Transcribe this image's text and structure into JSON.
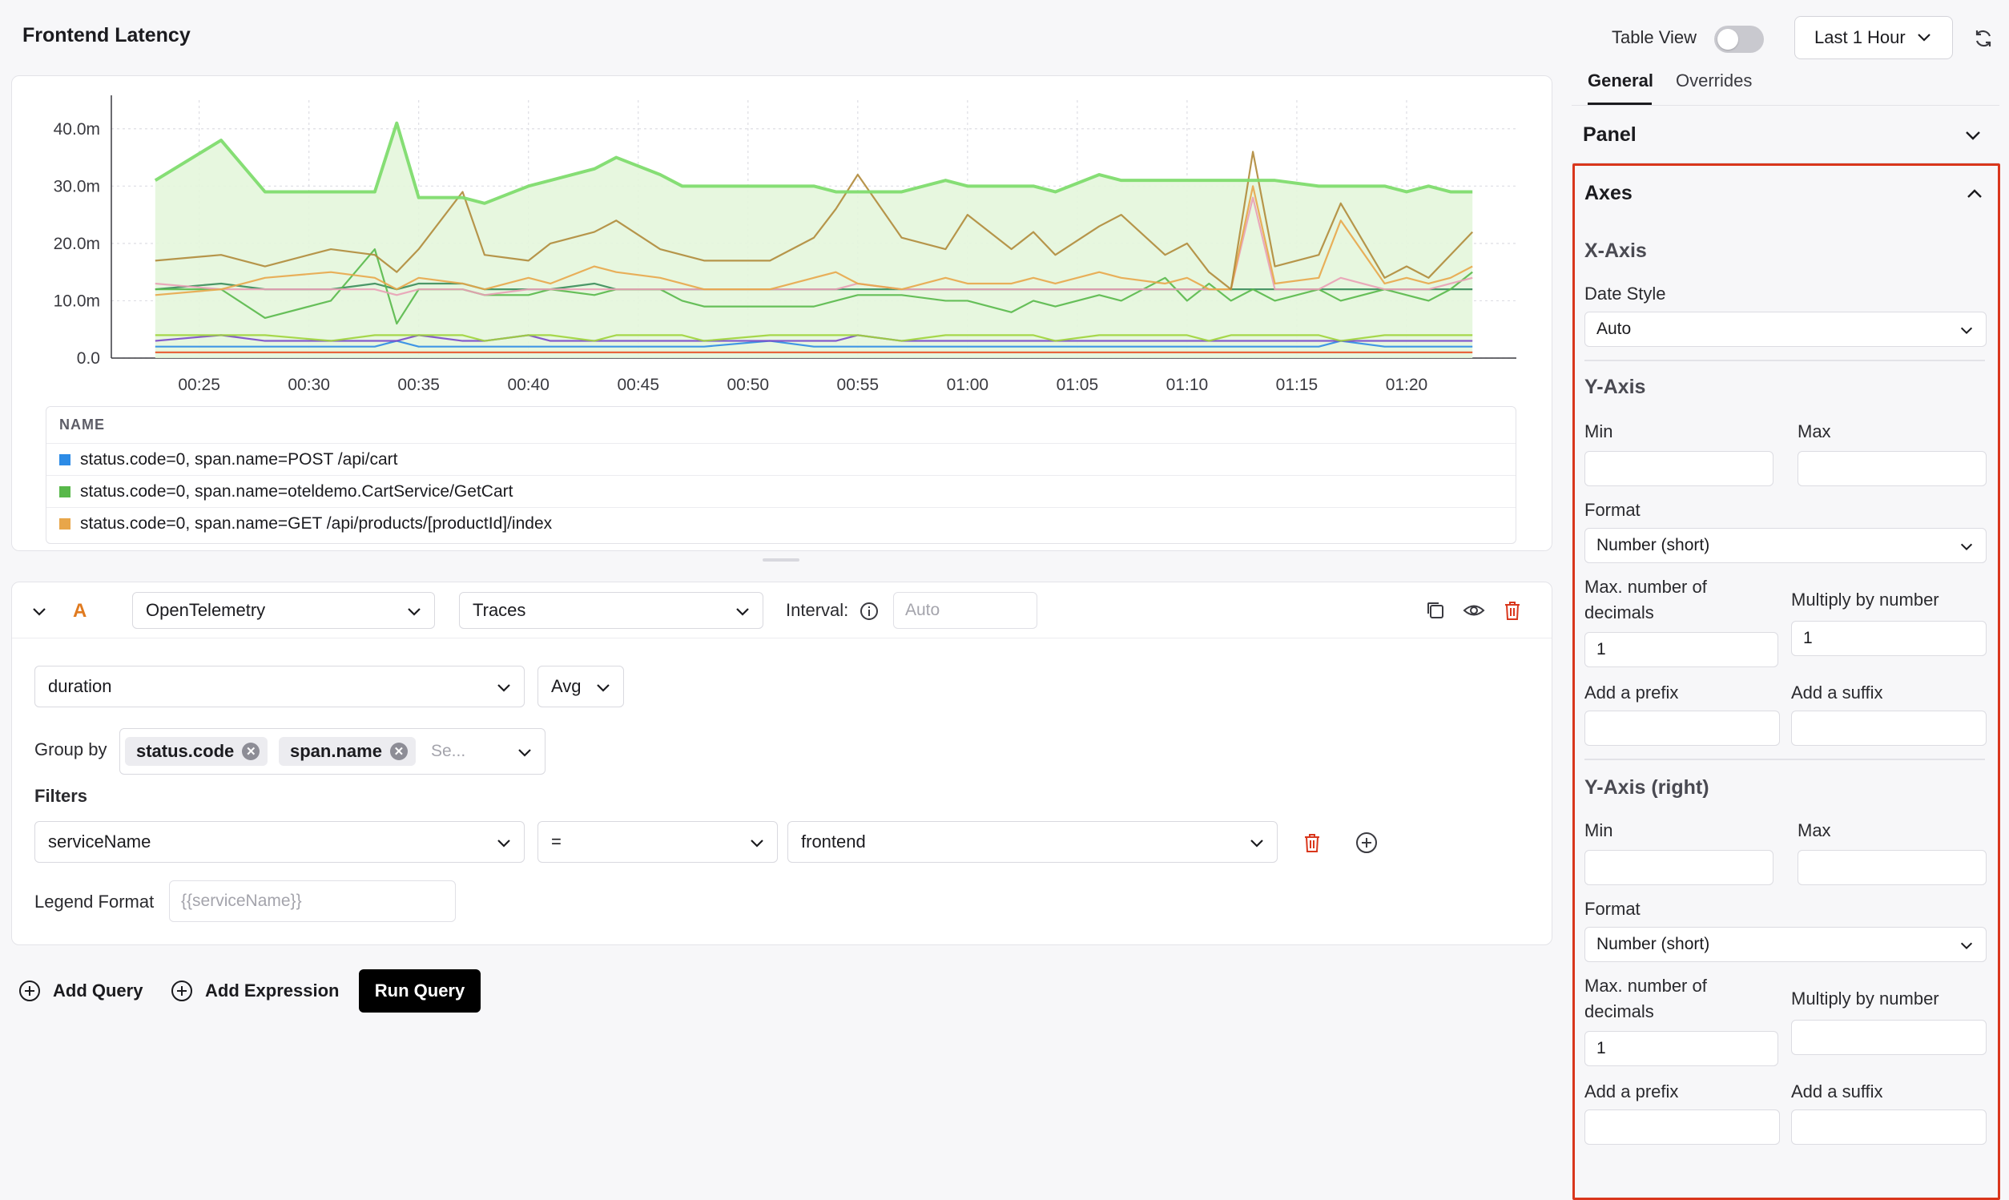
{
  "header": {
    "title": "Frontend Latency",
    "table_view_label": "Table View",
    "table_view_on": false,
    "time_range": "Last 1 Hour"
  },
  "chart_data": {
    "type": "line",
    "title": "",
    "xlabel": "",
    "ylabel": "",
    "x_ticks": [
      "00:25",
      "00:30",
      "00:35",
      "00:40",
      "00:45",
      "00:50",
      "00:55",
      "01:00",
      "01:05",
      "01:10",
      "01:15",
      "01:20"
    ],
    "y_ticks": [
      "0.0",
      "10.0m",
      "20.0m",
      "30.0m",
      "40.0m"
    ],
    "ylim": [
      0,
      45
    ],
    "x_minutes": [
      23,
      26,
      28,
      31,
      33,
      34,
      35,
      37,
      38,
      40,
      41,
      43,
      44,
      46,
      47,
      48,
      51,
      53,
      54,
      55,
      57,
      59,
      60,
      62,
      63,
      64,
      66,
      67,
      69,
      70,
      71,
      72,
      73,
      74,
      76,
      77,
      79,
      80,
      81,
      82,
      83
    ],
    "series": [
      {
        "name": "",
        "color": "#7fdc6e",
        "fill": "#e4f6dc",
        "values": [
          31,
          38,
          29,
          29,
          29,
          41,
          28,
          28,
          27,
          30,
          31,
          33,
          35,
          32,
          30,
          30,
          30,
          30,
          29,
          29,
          29,
          31,
          30,
          30,
          30,
          29,
          32,
          31,
          31,
          31,
          31,
          31,
          31,
          31,
          30,
          30,
          30,
          29,
          30,
          29,
          29
        ]
      },
      {
        "name": "",
        "color": "#b08a3a",
        "values": [
          17,
          18,
          16,
          19,
          18,
          15,
          19,
          29,
          18,
          17,
          20,
          22,
          24,
          19,
          18,
          17,
          17,
          21,
          26,
          32,
          21,
          19,
          25,
          19,
          22,
          18,
          23,
          25,
          18,
          20,
          15,
          12,
          36,
          16,
          18,
          27,
          14,
          16,
          14,
          18,
          22
        ]
      },
      {
        "name": "",
        "color": "#e8a64a",
        "values": [
          11,
          12,
          14,
          15,
          14,
          12,
          14,
          13,
          12,
          14,
          13,
          16,
          15,
          14,
          13,
          12,
          12,
          14,
          15,
          13,
          12,
          14,
          13,
          13,
          14,
          13,
          15,
          14,
          13,
          14,
          12,
          12,
          30,
          13,
          14,
          24,
          13,
          14,
          13,
          14,
          16
        ]
      },
      {
        "name": "",
        "color": "#e9a0b6",
        "values": [
          13,
          12,
          12,
          12,
          12,
          11,
          12,
          12,
          11,
          12,
          12,
          12,
          12,
          12,
          12,
          12,
          12,
          12,
          12,
          13,
          12,
          12,
          12,
          12,
          12,
          12,
          12,
          12,
          12,
          12,
          12,
          12,
          28,
          12,
          12,
          14,
          12,
          12,
          12,
          13,
          14
        ]
      },
      {
        "name": "",
        "color": "#58b84a",
        "values": [
          12,
          12,
          7,
          10,
          19,
          6,
          12,
          12,
          11,
          11,
          12,
          11,
          12,
          12,
          10,
          9,
          9,
          9,
          10,
          11,
          11,
          10,
          10,
          8,
          10,
          9,
          11,
          10,
          14,
          10,
          13,
          10,
          12,
          10,
          12,
          10,
          12,
          11,
          10,
          12,
          15
        ]
      },
      {
        "name": "",
        "color": "#3a8c5a",
        "values": [
          12,
          13,
          12,
          12,
          13,
          12,
          13,
          13,
          12,
          12,
          12,
          13,
          12,
          12,
          12,
          12,
          12,
          12,
          12,
          12,
          12,
          12,
          12,
          12,
          12,
          12,
          12,
          12,
          12,
          12,
          12,
          12,
          12,
          12,
          12,
          12,
          12,
          12,
          12,
          12,
          12
        ]
      },
      {
        "name": "",
        "color": "#9ed33a",
        "values": [
          4,
          4,
          4,
          3,
          4,
          4,
          4,
          4,
          3,
          4,
          4,
          3,
          4,
          4,
          4,
          3,
          4,
          4,
          4,
          4,
          3,
          4,
          4,
          4,
          4,
          3,
          4,
          4,
          4,
          4,
          3,
          4,
          4,
          4,
          4,
          3,
          4,
          4,
          4,
          4,
          4
        ]
      },
      {
        "name": "",
        "color": "#7a4ac8",
        "values": [
          3,
          4,
          3,
          3,
          3,
          3,
          4,
          3,
          3,
          4,
          3,
          3,
          3,
          3,
          3,
          3,
          3,
          3,
          3,
          4,
          3,
          3,
          3,
          3,
          3,
          3,
          3,
          3,
          3,
          3,
          3,
          3,
          3,
          3,
          3,
          3,
          3,
          3,
          3,
          3,
          3
        ]
      },
      {
        "name": "",
        "color": "#2c8be6",
        "values": [
          2,
          2,
          2,
          2,
          2,
          3,
          2,
          2,
          2,
          2,
          2,
          2,
          2,
          2,
          2,
          2,
          3,
          2,
          2,
          2,
          2,
          2,
          2,
          2,
          2,
          2,
          2,
          2,
          2,
          2,
          2,
          2,
          2,
          2,
          2,
          3,
          2,
          2,
          2,
          2,
          2
        ]
      },
      {
        "name": "",
        "color": "#e8552a",
        "values": [
          1,
          1,
          1,
          1,
          1,
          1,
          1,
          1,
          1,
          1,
          1,
          1,
          1,
          1,
          1,
          1,
          1,
          1,
          1,
          1,
          1,
          1,
          1,
          1,
          1,
          1,
          1,
          1,
          1,
          1,
          1,
          1,
          1,
          1,
          1,
          1,
          1,
          1,
          1,
          1,
          1
        ]
      }
    ],
    "legend_header": "NAME",
    "legend": [
      {
        "label": "status.code=0, span.name=POST /api/cart",
        "color": "#2c8be6"
      },
      {
        "label": "status.code=0, span.name=oteldemo.CartService/GetCart",
        "color": "#58b84a"
      },
      {
        "label": "status.code=0, span.name=GET /api/products/[productId]/index",
        "color": "#e8a64a"
      }
    ]
  },
  "query": {
    "letter": "A",
    "datasource": "OpenTelemetry",
    "signal": "Traces",
    "interval_label": "Interval:",
    "interval_placeholder": "Auto",
    "metric": "duration",
    "aggregation": "Avg",
    "group_by_label": "Group by",
    "group_by": [
      "status.code",
      "span.name"
    ],
    "group_by_placeholder": "Se...",
    "filters_label": "Filters",
    "filter": {
      "key": "serviceName",
      "op": "=",
      "value": "frontend"
    },
    "legend_format_label": "Legend Format",
    "legend_format_placeholder": "{{serviceName}}"
  },
  "actions": {
    "add_query": "Add Query",
    "add_expression": "Add Expression",
    "run_query": "Run Query"
  },
  "side": {
    "tabs": [
      "General",
      "Overrides"
    ],
    "panel_title": "Panel",
    "axes_title": "Axes",
    "x_axis": {
      "title": "X-Axis",
      "date_style_label": "Date Style",
      "date_style": "Auto"
    },
    "y_axis": {
      "title": "Y-Axis",
      "min_label": "Min",
      "max_label": "Max",
      "min": "",
      "max": "",
      "format_label": "Format",
      "format": "Number (short)",
      "decimals_label": "Max. number of decimals",
      "decimals": "1",
      "multiply_label": "Multiply by number",
      "multiply": "1",
      "prefix_label": "Add a prefix",
      "suffix_label": "Add a suffix",
      "prefix": "",
      "suffix": ""
    },
    "y_axis_right": {
      "title": "Y-Axis (right)",
      "min_label": "Min",
      "max_label": "Max",
      "min": "",
      "max": "",
      "format_label": "Format",
      "format": "Number (short)",
      "decimals_label": "Max. number of decimals",
      "decimals": "1",
      "multiply_label": "Multiply by number",
      "multiply": "",
      "prefix_label": "Add a prefix",
      "suffix_label": "Add a suffix"
    }
  }
}
